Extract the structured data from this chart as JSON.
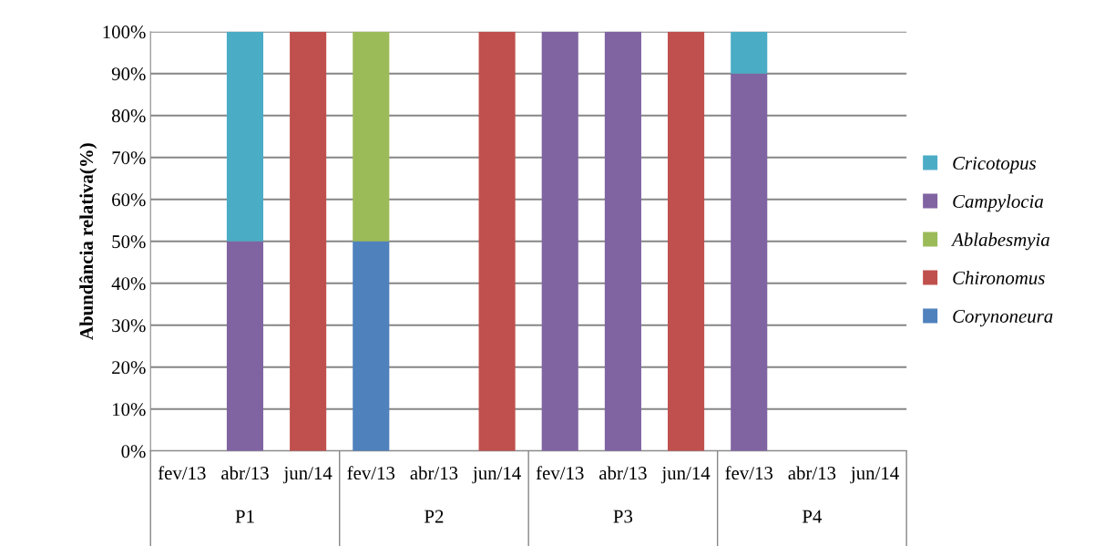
{
  "chart_data": {
    "type": "bar",
    "stacked": true,
    "ylabel": "Abundância relativa(%)",
    "categories": [
      "fev/13",
      "abr/13",
      "jun/14",
      "fev/13",
      "abr/13",
      "jun/14",
      "fev/13",
      "abr/13",
      "jun/14",
      "fev/13",
      "abr/13",
      "jun/14"
    ],
    "series": [
      {
        "name": "Corynoneura",
        "color": "#4f81bd",
        "values": [
          0,
          0,
          0,
          50,
          0,
          0,
          0,
          0,
          0,
          0,
          0,
          0
        ]
      },
      {
        "name": "Chironomus",
        "color": "#c0504d",
        "values": [
          0,
          0,
          100,
          0,
          0,
          100,
          0,
          0,
          100,
          0,
          0,
          0
        ]
      },
      {
        "name": "Ablabesmyia",
        "color": "#9bbb59",
        "values": [
          0,
          0,
          0,
          50,
          0,
          0,
          0,
          0,
          0,
          0,
          0,
          0
        ]
      },
      {
        "name": "Campylocia",
        "color": "#8064a2",
        "values": [
          0,
          50,
          0,
          0,
          0,
          0,
          100,
          100,
          0,
          90,
          0,
          0
        ]
      },
      {
        "name": "Cricotopus",
        "color": "#4bacc6",
        "values": [
          0,
          50,
          0,
          0,
          0,
          0,
          0,
          0,
          0,
          10,
          0,
          0
        ]
      }
    ],
    "annotations": [
      "P1",
      "P2",
      "P3",
      "P4"
    ],
    "ylim": [
      0,
      100
    ],
    "yticks": [
      {
        "value": 0,
        "label": "0%"
      },
      {
        "value": 10,
        "label": "10%"
      },
      {
        "value": 20,
        "label": "20%"
      },
      {
        "value": 30,
        "label": "30%"
      },
      {
        "value": 40,
        "label": "40%"
      },
      {
        "value": 50,
        "label": "50%"
      },
      {
        "value": 60,
        "label": "60%"
      },
      {
        "value": 70,
        "label": "70%"
      },
      {
        "value": 80,
        "label": "80%"
      },
      {
        "value": 90,
        "label": "90%"
      },
      {
        "value": 100,
        "label": "100%"
      }
    ],
    "grid": "y",
    "legend": "right"
  }
}
